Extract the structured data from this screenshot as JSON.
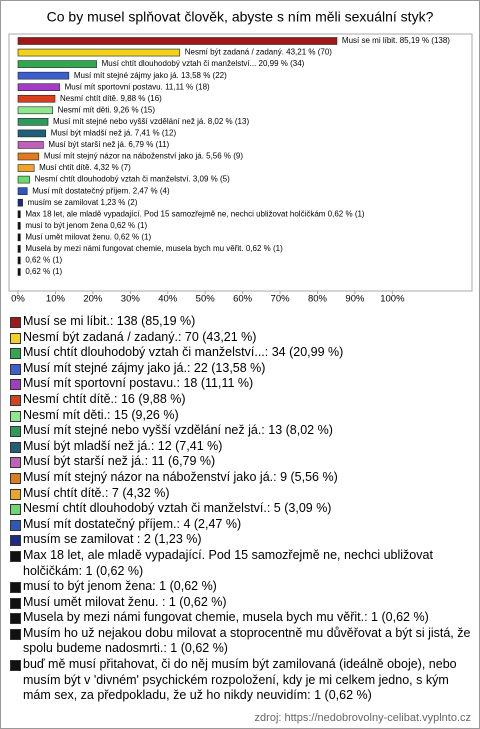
{
  "chart_data": {
    "type": "bar",
    "orientation": "horizontal",
    "title": "Co by musel splňovat člověk, abyste s ním měli sexuální styk?",
    "categories": [
      "Musí se mi líbit.: 138 (85,19 %)",
      "Nesmí být zadaná / zadaný.: 70 (43,21 %)",
      "Musí chtít dlouhodobý vztah či manželství...: 34 (20,99 %)",
      "Musí mít stejné zájmy jako já.: 22 (13,58 %)",
      "Musí mít sportovní postavu.: 18 (11,11 %)",
      "Nesmí chtít dítě.: 16 (9,88 %)",
      "Nesmí mít děti.: 15 (9,26 %)",
      "Musí mít stejné nebo vyšší vzdělání než já.: 13 (8,02 %)",
      "Musí být mladší než já.: 12 (7,41 %)",
      "Musí být starší než já.: 11 (6,79 %)",
      "Musí mít stejný názor na náboženství jako já.: 9 (5,56 %)",
      "Musí chtít dítě.: 7 (4,32 %)",
      "Nesmí chtít dlouhodobý vztah či manželství.: 5 (3,09 %)",
      "Musí mít dostatečný příjem.: 4 (2,47 %)",
      "musím se zamilovat : 2 (1,23 %)",
      "Max 18 let, ale mladě vypadající. Pod 15 samozřejmě ne, nechci ubližovat holčičkám: 1 (0,62 %)",
      "musí to být jenom žena: 1 (0,62 %)",
      "Musí umět milovat ženu. : 1 (0,62 %)",
      "Musela by mezi námi fungovat chemie, musela bych mu věřit.: 1 (0,62 %)",
      "Musím ho už nejakou dobu milovat a stoprocentně mu důvěřovat a být si jistá, že spolu budeme nadosmrti.: 1 (0,62 %)",
      "buď mě musí přitahovat, či do něj musím být zamilovaná (ideálně oboje), nebo musím být v 'divném' psychickém rozpoložení, kdy je mi celkem jedno, s kým mám sex, za předpokladu, že už ho nikdy neuvidím: 1 (0,62 %)"
    ],
    "values": [
      85.19,
      43.21,
      20.99,
      13.58,
      11.11,
      9.88,
      9.26,
      8.02,
      7.41,
      6.79,
      5.56,
      4.32,
      3.09,
      2.47,
      1.23,
      0.62,
      0.62,
      0.62,
      0.62,
      0.62,
      0.62
    ],
    "value_labels": [
      "Musí se mi líbit. 85,19 % (138)",
      "Nesmí být zadaná / zadaný. 43,21 % (70)",
      "Musí chtít dlouhodobý vztah či manželství... 20,99 % (34)",
      "Musí mít stejné zájmy jako já. 13,58 % (22)",
      "Musí mít sportovní postavu. 11,11 % (18)",
      "Nesmí chtít dítě. 9,88 % (16)",
      "Nesmí mít děti. 9,26 % (15)",
      "Musí mít stejné nebo vyšší vzdělání než já. 8,02 % (13)",
      "Musí být mladší než já. 7,41 % (12)",
      "Musí být starší než já. 6,79 % (11)",
      "Musí mít stejný názor na náboženství jako já. 5,56 % (9)",
      "Musí chtít dítě. 4,32 % (7)",
      "Nesmí chtít dlouhodobý vztah či manželství. 3,09 % (5)",
      "Musí mít dostatečný příjem. 2,47 % (4)",
      "musím se zamilovat 1,23 % (2)",
      "Max 18 let, ale mladě vypadající. Pod 15 samozřejmě ne, nechci ubližovat holčičkám 0,62 % (1)",
      "musí to být jenom žena 0,62 % (1)",
      "Musí umět milovat ženu.  0,62 % (1)",
      "Musela by mezi námi fungovat chemie, musela bych mu věřit. 0,62 % (1)",
      "0,62 % (1)",
      "0,62 % (1)"
    ],
    "colors": [
      "#a01818",
      "#f2d21a",
      "#2fa84f",
      "#3b5fd0",
      "#a23cc4",
      "#d8401c",
      "#8ee88e",
      "#2c9a5a",
      "#1f5f78",
      "#c060b8",
      "#e07a1c",
      "#f0a22a",
      "#6ed86e",
      "#2e58b8",
      "#1c2a88",
      "#111111",
      "#111111",
      "#111111",
      "#111111",
      "#111111",
      "#111111"
    ],
    "xlim": [
      0,
      121
    ],
    "xticks": [
      {
        "value": 0,
        "label": "0%"
      },
      {
        "value": 10,
        "label": "10%"
      },
      {
        "value": 20,
        "label": "20%"
      },
      {
        "value": 30,
        "label": "30%"
      },
      {
        "value": 40,
        "label": "40%"
      },
      {
        "value": 50,
        "label": "50%"
      },
      {
        "value": 60,
        "label": "60%"
      },
      {
        "value": 70,
        "label": "70%"
      },
      {
        "value": 80,
        "label": "80%"
      },
      {
        "value": 90,
        "label": "90%"
      },
      {
        "value": 100,
        "label": "100%"
      }
    ],
    "grid": false,
    "source": "zdroj: https://nedobrovolny-celibat.vyplnto.cz"
  }
}
